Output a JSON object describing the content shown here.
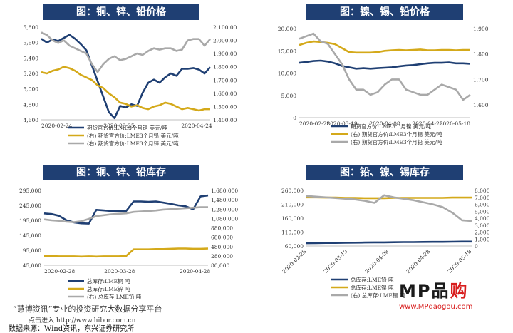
{
  "watermark": {
    "title_a": "MP",
    "title_b": "品",
    "title_c": "购",
    "url": "www.MPdaogou.com"
  },
  "footer": {
    "brand": "“慧博资讯”专业的投资研究大数据分享平台",
    "link": "点击进入 http://www.hibor.com.cn",
    "source": "数据来源：Wind资讯，东兴证券研究所"
  },
  "colors": {
    "navy": "#1f3f73",
    "gold": "#d4a91a",
    "gray": "#a9a9a9"
  },
  "chart_data": [
    {
      "panel": "top-left",
      "type": "line",
      "title": "图：铜、锌、铅价格",
      "x_ticks": [
        "2020-02-24",
        "2020-03-25",
        "2020-04-24"
      ],
      "ylim_left": [
        4600,
        5800
      ],
      "yticks_left": [
        "4,600",
        "4,800",
        "5,000",
        "5,200",
        "5,400",
        "5,600",
        "5,800"
      ],
      "ylim_right": [
        1400,
        2100
      ],
      "yticks_right": [
        "1,400.00",
        "1,500.00",
        "1,600.00",
        "1,700.00",
        "1,800.00",
        "1,900.00",
        "2,000.00",
        "2,100.00"
      ],
      "series": [
        {
          "name": "期货官方价:LME3个月铜  美元/吨",
          "axis": "left",
          "color": "#1f3f73",
          "values": [
            5650,
            5600,
            5640,
            5620,
            5660,
            5700,
            5650,
            5580,
            5500,
            5300,
            5100,
            4900,
            4700,
            4620,
            4780,
            4760,
            4800,
            4780,
            4950,
            5080,
            5120,
            5080,
            5150,
            5200,
            5170,
            5260,
            5260,
            5270,
            5250,
            5200,
            5280
          ]
        },
        {
          "name": "(右)  期货官方价:LME3个月铅  美元/吨",
          "axis": "right",
          "color": "#d4a91a",
          "values": [
            1760,
            1750,
            1770,
            1780,
            1800,
            1790,
            1770,
            1740,
            1720,
            1700,
            1660,
            1640,
            1600,
            1570,
            1530,
            1520,
            1500,
            1510,
            1490,
            1480,
            1500,
            1510,
            1530,
            1520,
            1500,
            1480,
            1490,
            1480,
            1470,
            1480,
            1480
          ]
        },
        {
          "name": "(右)  期货官方价:LME3个月锌  美元/吨",
          "axis": "right",
          "color": "#a9a9a9",
          "values": [
            2060,
            2040,
            2000,
            1980,
            2000,
            1960,
            1940,
            1920,
            1900,
            1820,
            1760,
            1820,
            1860,
            1880,
            1850,
            1860,
            1880,
            1900,
            1890,
            1920,
            1940,
            1930,
            1940,
            1940,
            1920,
            1930,
            2000,
            2010,
            2010,
            1960,
            2010
          ]
        }
      ]
    },
    {
      "panel": "top-right",
      "type": "line",
      "title": "图：镍、锡、铅价格",
      "x_ticks": [
        "2020-02-28",
        "2020-03-19",
        "2020-04-08",
        "2020-04-28",
        "2020-05-18"
      ],
      "ylim_left": [
        0,
        20000
      ],
      "yticks_left": [
        "0",
        "5,000",
        "10,000",
        "15,000",
        "20,000"
      ],
      "ylim_right": [
        1550,
        1900
      ],
      "yticks_right": [
        "1,600",
        "1,700",
        "1,800",
        "1,900"
      ],
      "series": [
        {
          "name": "期货官方价:LME3个月镍  美元/吨",
          "axis": "left",
          "color": "#1f3f73",
          "values": [
            12300,
            12500,
            12700,
            12800,
            12600,
            12200,
            11600,
            11300,
            11000,
            11100,
            11000,
            11100,
            11200,
            11300,
            11500,
            11700,
            11800,
            12000,
            12200,
            12300,
            12300,
            12400,
            12200,
            12200,
            12100
          ]
        },
        {
          "name": "(右)  期货官方价:LME3个月锡  美元/吨",
          "axis": "left",
          "color": "#d4a91a",
          "values": [
            16300,
            16800,
            17100,
            17000,
            16800,
            16500,
            15600,
            14700,
            14600,
            14600,
            14600,
            14700,
            15000,
            15100,
            15200,
            15100,
            15200,
            15300,
            15100,
            15100,
            15200,
            15200,
            15100,
            15200,
            15200
          ]
        },
        {
          "name": "(右)  期货官方价:LME3个月铅  美元/吨",
          "axis": "right",
          "color": "#a9a9a9",
          "values": [
            1860,
            1870,
            1880,
            1850,
            1840,
            1800,
            1760,
            1700,
            1660,
            1660,
            1640,
            1650,
            1680,
            1700,
            1700,
            1660,
            1650,
            1640,
            1640,
            1660,
            1680,
            1670,
            1660,
            1620,
            1640
          ]
        }
      ]
    },
    {
      "panel": "bottom-left",
      "type": "line",
      "title": "图：铜、锌、铅库存",
      "x_ticks": [
        "2020-02-28",
        "2020-03-28",
        "2020-04-28"
      ],
      "ylim_left": [
        45000,
        295000
      ],
      "yticks_left": [
        "45,000",
        "95,000",
        "145,000",
        "195,000",
        "245,000",
        "295,000"
      ],
      "ylim_right": [
        80000,
        1680000
      ],
      "yticks_right": [
        "80,000",
        "280,000",
        "480,000",
        "680,000",
        "880,000",
        "1,080,000",
        "1,280,000",
        "1,480,000",
        "1,680,000"
      ],
      "series": [
        {
          "name": "总库存:LME铜  吨",
          "axis": "left",
          "color": "#1f3f73",
          "values": [
            218000,
            216000,
            210000,
            195000,
            188000,
            185000,
            184000,
            230000,
            228000,
            226000,
            227000,
            226000,
            258000,
            258000,
            257000,
            258000,
            254000,
            250000,
            245000,
            242000,
            232000,
            275000,
            278000
          ]
        },
        {
          "name": "总库存:LME锌  吨",
          "axis": "left",
          "color": "#d4a91a",
          "values": [
            76000,
            76000,
            75000,
            75000,
            75000,
            74000,
            75000,
            74000,
            75000,
            75000,
            75000,
            76000,
            98000,
            98000,
            98000,
            99000,
            99000,
            100000,
            101000,
            101000,
            100000,
            100000,
            101000
          ]
        },
        {
          "name": "(右)  总库存:LME铅  吨",
          "axis": "right",
          "color": "#a9a9a9",
          "values": [
            1060000,
            1040000,
            1030000,
            1010000,
            1000000,
            1020000,
            1070000,
            1130000,
            1150000,
            1170000,
            1180000,
            1190000,
            1220000,
            1230000,
            1240000,
            1250000,
            1270000,
            1280000,
            1290000,
            1300000,
            1310000,
            1320000,
            1320000
          ]
        }
      ]
    },
    {
      "panel": "bottom-right",
      "type": "line",
      "title": "图：铅、镍、锡库存",
      "x_ticks": [
        "2020-02-28",
        "2020-03-19",
        "2020-04-08",
        "2020-04-28",
        "2020-05-18"
      ],
      "ylim_left": [
        60000,
        260000
      ],
      "yticks_left": [
        "60,000",
        "110,000",
        "160,000",
        "210,000",
        "260,000"
      ],
      "ylim_right": [
        0,
        8000
      ],
      "yticks_right": [
        "0",
        "1,000",
        "2,000",
        "3,000",
        "4,000",
        "5,000",
        "6,000",
        "7,000",
        "8,000"
      ],
      "series": [
        {
          "name": "总库存:LME铅  吨",
          "axis": "left",
          "color": "#1f3f73",
          "values": [
            70000,
            70500,
            71000,
            71000,
            71500,
            72000,
            72500,
            73000,
            73000,
            73500,
            74000,
            74000,
            74500,
            75000,
            75000,
            75500,
            76000,
            76000
          ]
        },
        {
          "name": "总库存:LME镍  吨",
          "axis": "left",
          "color": "#d4a91a",
          "values": [
            235000,
            235000,
            234000,
            234000,
            233000,
            233000,
            232000,
            232000,
            232000,
            233000,
            233000,
            233000,
            233000,
            233000,
            233000,
            234000,
            234000,
            234000
          ]
        },
        {
          "name": "(右)  总库存:LME锡  吨",
          "axis": "right",
          "color": "#a9a9a9",
          "values": [
            7200,
            7100,
            7000,
            6900,
            6800,
            6700,
            6500,
            6200,
            7300,
            7000,
            6800,
            6600,
            6300,
            6000,
            5600,
            4800,
            3700,
            3600
          ]
        }
      ]
    }
  ]
}
